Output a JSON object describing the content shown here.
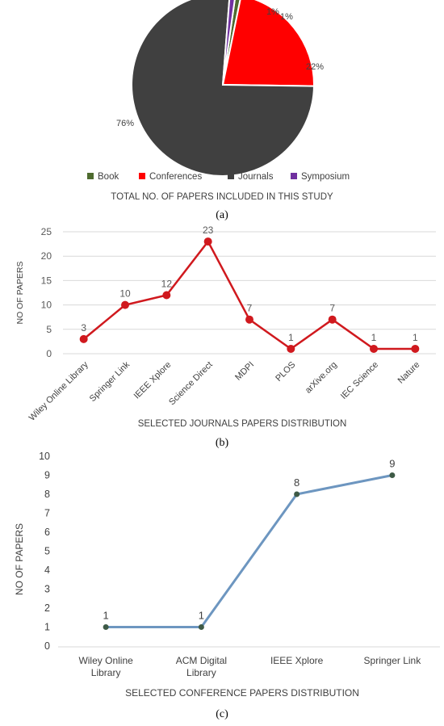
{
  "chart_data": [
    {
      "type": "pie",
      "panel_label": "(a)",
      "xlabel": "TOTAL NO. OF PAPERS INCLUDED IN THIS STUDY",
      "legend_position": "bottom",
      "slices": [
        {
          "name": "Book",
          "value": 1,
          "label": "1%",
          "color": "#4e6b2f"
        },
        {
          "name": "Conferences",
          "value": 22,
          "label": "22%",
          "color": "#ff0000"
        },
        {
          "name": "Journals",
          "value": 76,
          "label": "76%",
          "color": "#404040"
        },
        {
          "name": "Symposium",
          "value": 1,
          "label": "1%",
          "color": "#7030a0"
        }
      ]
    },
    {
      "type": "line",
      "panel_label": "(b)",
      "xlabel": "SELECTED  JOURNALS  PAPERS  DISTRIBUTION",
      "ylabel": "NO OF PAPERS",
      "categories": [
        "Wiley Online Library",
        "Springer Link",
        "IEEE Xplore",
        "Science Direct",
        "MDPI",
        "PLOS",
        "arXive.org",
        "IEC Science",
        "Nature"
      ],
      "values": [
        3,
        10,
        12,
        23,
        7,
        1,
        7,
        1,
        1
      ],
      "data_labels": [
        "3",
        "10",
        "12",
        "23",
        "7",
        "1",
        "7",
        "1",
        "1"
      ],
      "yticks": [
        "0",
        "5",
        "10",
        "15",
        "20",
        "25"
      ],
      "ylim": [
        0,
        25
      ],
      "color": "#d0191e",
      "grid": true
    },
    {
      "type": "line",
      "panel_label": "(c)",
      "xlabel": "SELECTED  CONFERENCE  PAPERS  DISTRIBUTION",
      "ylabel": "NO OF PAPERS",
      "categories": [
        [
          "Wiley Online",
          "Library"
        ],
        [
          "ACM Digital",
          "Library"
        ],
        [
          "IEEE Xplore"
        ],
        [
          "Springer Link"
        ]
      ],
      "values": [
        1,
        1,
        8,
        9
      ],
      "data_labels": [
        "1",
        "1",
        "8",
        "9"
      ],
      "yticks": [
        "0",
        "1",
        "2",
        "3",
        "4",
        "5",
        "6",
        "7",
        "8",
        "9",
        "10"
      ],
      "ylim": [
        0,
        10
      ],
      "color": "#6d96c0",
      "marker_color": "#3e5a46",
      "grid": false
    }
  ]
}
